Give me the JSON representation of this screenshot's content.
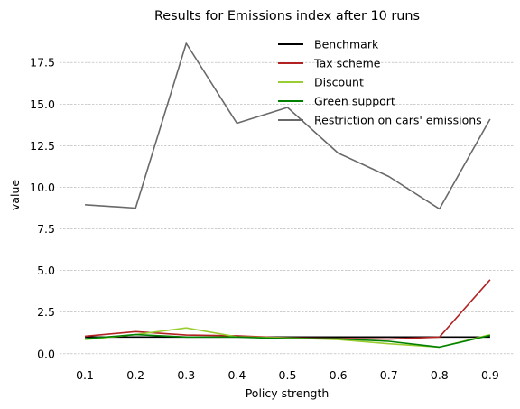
{
  "chart_data": {
    "type": "line",
    "title": "Results for Emissions index after 10 runs",
    "xlabel": "Policy strength",
    "ylabel": "value",
    "x": [
      0.1,
      0.2,
      0.3,
      0.4,
      0.5,
      0.6,
      0.7,
      0.8,
      0.9
    ],
    "x_tick_labels": [
      "0.1",
      "0.2",
      "0.3",
      "0.4",
      "0.5",
      "0.6",
      "0.7",
      "0.8",
      "0.9"
    ],
    "y_ticks": [
      0.0,
      2.5,
      5.0,
      7.5,
      10.0,
      12.5,
      15.0,
      17.5
    ],
    "y_tick_labels": [
      "0.0",
      "2.5",
      "5.0",
      "7.5",
      "10.0",
      "12.5",
      "15.0",
      "17.5"
    ],
    "xlim": [
      0.05,
      0.95
    ],
    "ylim": [
      -0.5,
      19.3
    ],
    "grid": "horizontal dashed",
    "legend_position": "top-right",
    "series": [
      {
        "name": "Benchmark",
        "color": "#000000",
        "values": [
          1.0,
          1.0,
          1.0,
          1.0,
          1.0,
          1.0,
          1.0,
          1.0,
          1.0
        ]
      },
      {
        "name": "Tax scheme",
        "color": "#b22222",
        "values": [
          1.05,
          1.33,
          1.12,
          1.08,
          0.95,
          0.92,
          0.88,
          1.0,
          4.45
        ]
      },
      {
        "name": "Discount",
        "color": "#9acd32",
        "values": [
          0.85,
          1.15,
          1.55,
          1.02,
          0.95,
          0.85,
          0.6,
          0.4,
          1.15
        ]
      },
      {
        "name": "Green support",
        "color": "#008000",
        "values": [
          0.9,
          1.15,
          1.0,
          1.0,
          0.9,
          0.9,
          0.75,
          0.4,
          1.1
        ]
      },
      {
        "name": "Restriction on cars' emissions",
        "color": "#696969",
        "values": [
          8.95,
          8.75,
          18.65,
          13.85,
          14.8,
          12.05,
          10.65,
          8.7,
          14.1
        ]
      }
    ]
  }
}
